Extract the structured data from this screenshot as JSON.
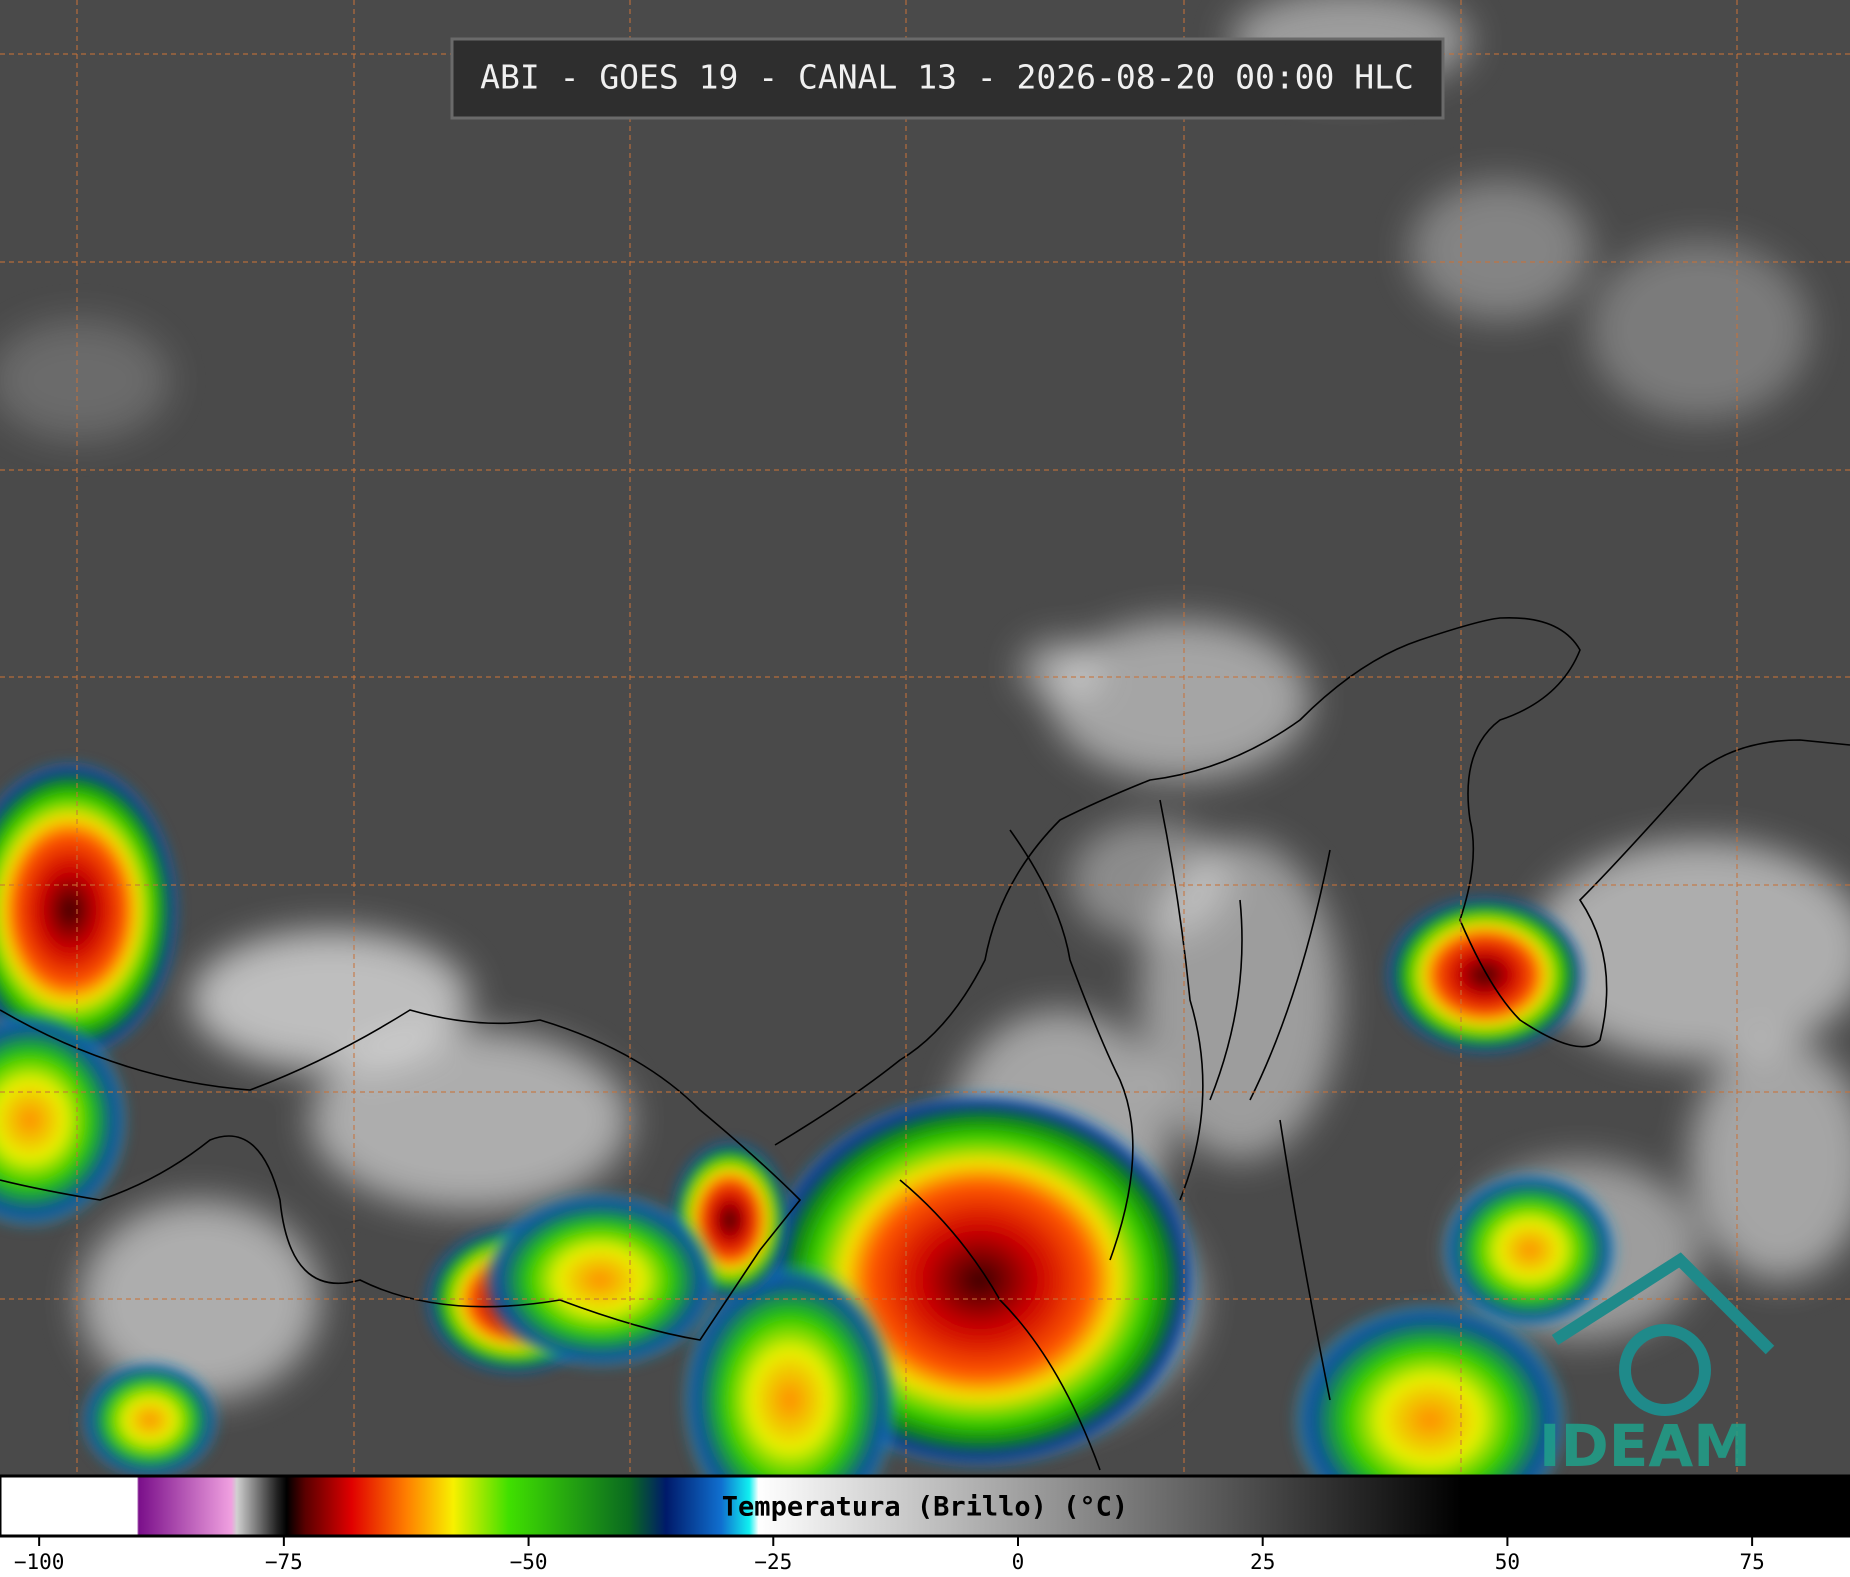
{
  "title": "ABI - GOES 19 - CANAL 13 - 2026-08-20 00:00 HLC",
  "colorbar": {
    "label": "Temperatura (Brillo) (°C)",
    "xlim": [
      -104,
      85
    ],
    "xticks": [
      {
        "value": -100,
        "label": "−100"
      },
      {
        "value": -75,
        "label": "−75"
      },
      {
        "value": -50,
        "label": "−50"
      },
      {
        "value": -25,
        "label": "−25"
      },
      0,
      25,
      50,
      75
    ]
  },
  "logo": "IDEAM"
}
